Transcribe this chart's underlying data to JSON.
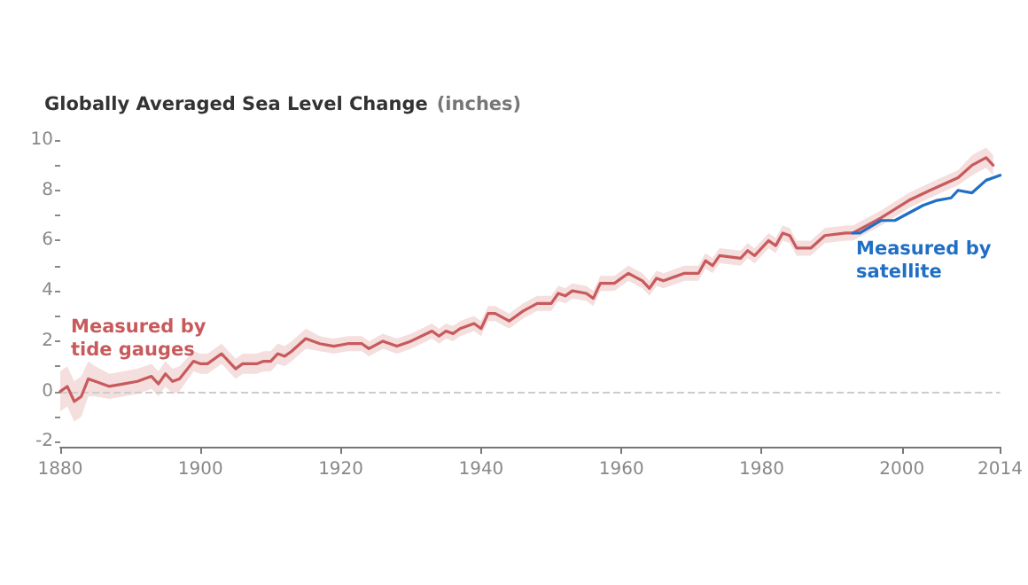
{
  "chart_data": {
    "type": "line",
    "title": "Globally Averaged Sea Level Change",
    "ylabel": "(inches)",
    "marker": "none",
    "line_style": "solid",
    "grid": false,
    "xlim": [
      1880,
      2014
    ],
    "xticks": [
      1880,
      1900,
      1920,
      1940,
      1960,
      1980,
      2000,
      2014
    ],
    "ylim": [
      -2.2,
      10
    ],
    "yticks": [
      -2,
      {
        "value": -1,
        "label": null
      },
      0,
      {
        "value": 1,
        "label": null
      },
      2,
      {
        "value": 3,
        "label": null
      },
      4,
      {
        "value": 5,
        "label": null
      },
      6,
      {
        "value": 7,
        "label": null
      },
      8,
      {
        "value": 9,
        "label": null
      },
      10
    ],
    "ref_lines": [
      {
        "axis": "y",
        "value": 0,
        "color": "#cccccc",
        "line_style": "dashed"
      }
    ],
    "series": [
      {
        "name": "Measured by tide gauges",
        "color": "#c85a5c",
        "x": [
          1880,
          1881,
          1882,
          1883,
          1884,
          1885,
          1887,
          1889,
          1891,
          1893,
          1894,
          1895,
          1896,
          1897,
          1899,
          1900,
          1901,
          1903,
          1905,
          1906,
          1908,
          1909,
          1910,
          1911,
          1912,
          1913,
          1915,
          1917,
          1919,
          1921,
          1923,
          1924,
          1926,
          1928,
          1930,
          1933,
          1934,
          1935,
          1936,
          1937,
          1939,
          1940,
          1941,
          1942,
          1944,
          1946,
          1948,
          1950,
          1951,
          1952,
          1953,
          1955,
          1956,
          1957,
          1959,
          1961,
          1963,
          1964,
          1965,
          1966,
          1969,
          1971,
          1972,
          1973,
          1974,
          1977,
          1978,
          1979,
          1981,
          1982,
          1983,
          1984,
          1985,
          1987,
          1989,
          1992,
          1993,
          1997,
          2001,
          2004,
          2008,
          2010,
          2012,
          2013
        ],
        "values": [
          0.0,
          0.2,
          -0.4,
          -0.2,
          0.5,
          0.4,
          0.2,
          0.3,
          0.4,
          0.6,
          0.3,
          0.7,
          0.4,
          0.5,
          1.2,
          1.1,
          1.1,
          1.5,
          0.9,
          1.1,
          1.1,
          1.2,
          1.2,
          1.5,
          1.4,
          1.6,
          2.1,
          1.9,
          1.8,
          1.9,
          1.9,
          1.7,
          2.0,
          1.8,
          2.0,
          2.4,
          2.2,
          2.4,
          2.3,
          2.5,
          2.7,
          2.5,
          3.1,
          3.1,
          2.8,
          3.2,
          3.5,
          3.5,
          3.9,
          3.8,
          4.0,
          3.9,
          3.7,
          4.3,
          4.3,
          4.7,
          4.4,
          4.1,
          4.5,
          4.4,
          4.7,
          4.7,
          5.2,
          5.0,
          5.4,
          5.3,
          5.6,
          5.4,
          6.0,
          5.8,
          6.3,
          6.2,
          5.7,
          5.7,
          6.2,
          6.3,
          6.3,
          6.9,
          7.6,
          8.0,
          8.5,
          9.0,
          9.3,
          9.0
        ],
        "lower": [
          -0.8,
          -0.6,
          -1.2,
          -1.0,
          -0.2,
          -0.2,
          -0.3,
          -0.2,
          -0.1,
          0.1,
          -0.2,
          0.2,
          -0.1,
          0.0,
          0.8,
          0.7,
          0.7,
          1.1,
          0.5,
          0.7,
          0.7,
          0.8,
          0.8,
          1.1,
          1.0,
          1.2,
          1.7,
          1.6,
          1.5,
          1.6,
          1.6,
          1.4,
          1.7,
          1.5,
          1.7,
          2.1,
          1.9,
          2.1,
          2.0,
          2.2,
          2.4,
          2.2,
          2.8,
          2.8,
          2.5,
          2.9,
          3.2,
          3.2,
          3.6,
          3.5,
          3.7,
          3.6,
          3.4,
          4.0,
          4.0,
          4.4,
          4.1,
          3.8,
          4.2,
          4.1,
          4.4,
          4.4,
          4.9,
          4.7,
          5.1,
          5.0,
          5.3,
          5.1,
          5.7,
          5.5,
          6.0,
          5.9,
          5.4,
          5.4,
          5.9,
          6.0,
          6.0,
          6.6,
          7.3,
          7.7,
          8.2,
          8.6,
          8.9,
          8.6
        ],
        "upper": [
          0.8,
          1.0,
          0.4,
          0.6,
          1.2,
          1.0,
          0.7,
          0.8,
          0.9,
          1.1,
          0.8,
          1.2,
          0.9,
          1.0,
          1.6,
          1.5,
          1.5,
          1.9,
          1.3,
          1.5,
          1.5,
          1.6,
          1.6,
          1.9,
          1.8,
          2.0,
          2.5,
          2.2,
          2.1,
          2.2,
          2.2,
          2.0,
          2.3,
          2.1,
          2.3,
          2.7,
          2.5,
          2.7,
          2.6,
          2.8,
          3.0,
          2.8,
          3.4,
          3.4,
          3.1,
          3.5,
          3.8,
          3.8,
          4.2,
          4.1,
          4.3,
          4.2,
          4.0,
          4.6,
          4.6,
          5.0,
          4.7,
          4.4,
          4.8,
          4.7,
          5.0,
          5.0,
          5.5,
          5.3,
          5.7,
          5.6,
          5.9,
          5.7,
          6.3,
          6.1,
          6.6,
          6.5,
          6.0,
          6.0,
          6.5,
          6.6,
          6.6,
          7.2,
          7.9,
          8.3,
          8.8,
          9.4,
          9.7,
          9.4
        ]
      },
      {
        "name": "Measured by satellite",
        "color": "#1f6fc5",
        "x": [
          1993,
          1994,
          1997,
          1999,
          2001,
          2003,
          2005,
          2007,
          2008,
          2010,
          2012,
          2014
        ],
        "values": [
          6.3,
          6.3,
          6.8,
          6.8,
          7.1,
          7.4,
          7.6,
          7.7,
          8.0,
          7.9,
          8.4,
          8.6
        ]
      }
    ]
  }
}
